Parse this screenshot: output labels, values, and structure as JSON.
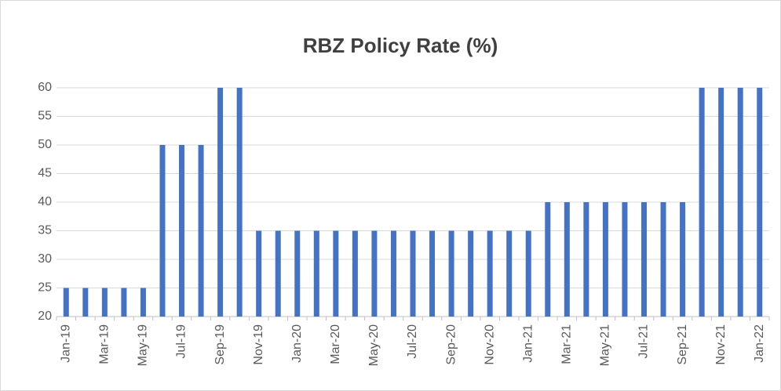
{
  "chart_data": {
    "type": "bar",
    "title": "RBZ Policy Rate (%)",
    "categories": [
      "Jan-19",
      null,
      "Mar-19",
      null,
      "May-19",
      null,
      "Jul-19",
      null,
      "Sep-19",
      null,
      "Nov-19",
      null,
      "Jan-20",
      null,
      "Mar-20",
      null,
      "May-20",
      null,
      "Jul-20",
      null,
      "Sep-20",
      null,
      "Nov-20",
      null,
      "Jan-21",
      null,
      "Mar-21",
      null,
      "May-21",
      null,
      "Jul-21",
      null,
      "Sep-21",
      null,
      "Nov-21",
      null,
      "Jan-22"
    ],
    "values": [
      25,
      25,
      25,
      25,
      25,
      50,
      50,
      50,
      60,
      60,
      35,
      35,
      35,
      35,
      35,
      35,
      35,
      35,
      35,
      35,
      35,
      35,
      35,
      35,
      35,
      40,
      40,
      40,
      40,
      40,
      40,
      40,
      40,
      60,
      60,
      60,
      60
    ],
    "color": "#4472c4",
    "ylim": [
      20,
      60
    ],
    "yticks": [
      20,
      25,
      30,
      35,
      40,
      45,
      50,
      55,
      60
    ],
    "grid": true
  }
}
